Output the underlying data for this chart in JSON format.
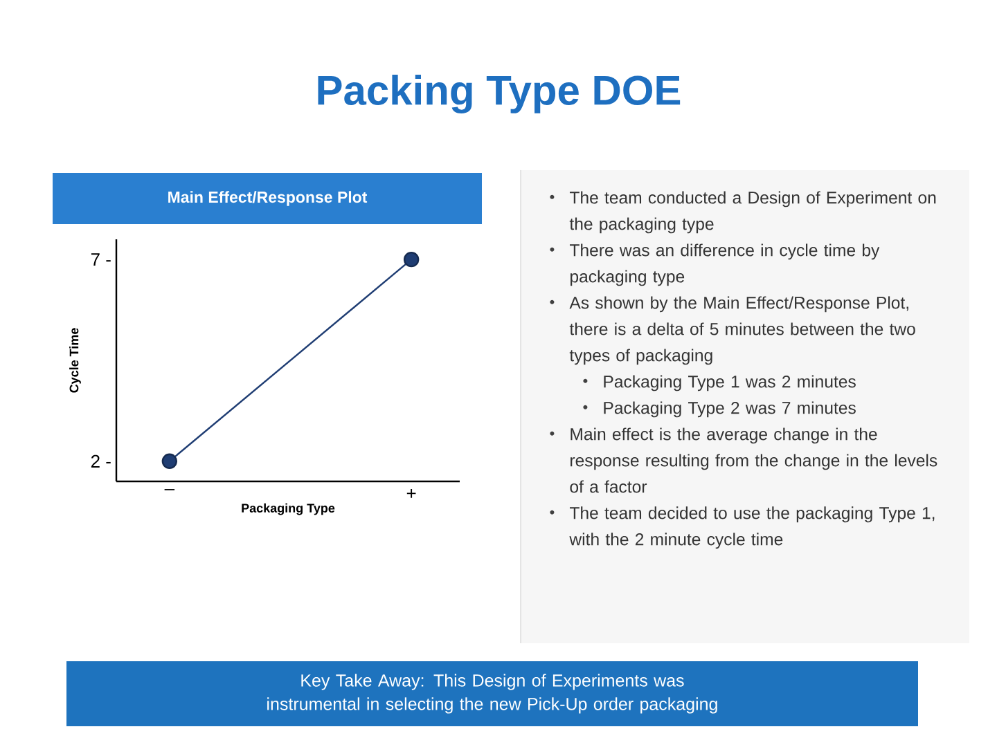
{
  "chart_data": {
    "type": "line",
    "title": "Packing Type DOE",
    "subtitle": "Main Effect/Response Plot",
    "xlabel": "Packaging Type",
    "ylabel": "Cycle Time",
    "categories": [
      "–",
      "+"
    ],
    "values": [
      2,
      7
    ],
    "color": "#1f3d73",
    "marker": "circle",
    "line_style": "solid",
    "ylim": [
      1.5,
      7.5
    ],
    "yticks": [
      {
        "value": 2,
        "label": "2 -"
      },
      {
        "value": 7,
        "label": "7 -"
      }
    ],
    "annotations": [
      "The team conducted a Design of Experiment on the packaging type",
      "There was an difference in cycle time by packaging type",
      "As shown by the Main Effect/Response Plot, there is a delta of 5 minutes between the two types of packaging",
      "Packaging Type 1 was 2 minutes",
      "Packaging Type 2 was 7 minutes",
      "Main effect is the average change in the response resulting from the change in the levels of a factor",
      "The team decided to use the packaging Type 1, with the 2 minute cycle time",
      "Key Take Away: This Design of Experiments was instrumental in selecting the new Pick-Up order packaging"
    ]
  }
}
